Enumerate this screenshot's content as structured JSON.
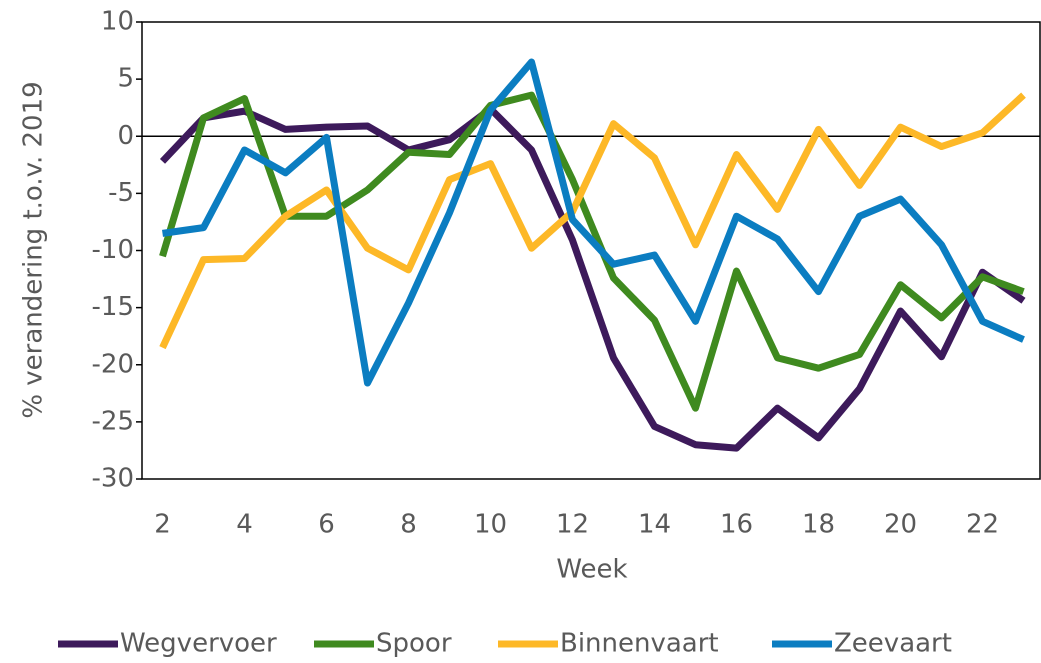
{
  "chart_data": {
    "type": "line",
    "x_label": "Week",
    "y_label": "% verandering t.o.v. 2019",
    "x": [
      2,
      3,
      4,
      5,
      6,
      7,
      8,
      9,
      10,
      11,
      12,
      13,
      14,
      15,
      16,
      17,
      18,
      19,
      20,
      21,
      22,
      23
    ],
    "xlim": [
      1.5,
      23.5
    ],
    "xticks": [
      2,
      4,
      6,
      8,
      10,
      12,
      14,
      16,
      18,
      20,
      22
    ],
    "ylim": [
      -30,
      10
    ],
    "yticks": [
      -30,
      -25,
      -20,
      -15,
      -10,
      -5,
      0,
      5,
      10
    ],
    "legend": "bottom",
    "series": [
      {
        "name": "Wegvervoer",
        "color": "#3d1a5b",
        "values": [
          -2.2,
          1.6,
          2.2,
          0.6,
          0.8,
          0.9,
          -1.2,
          -0.3,
          2.4,
          -1.2,
          -9.1,
          -19.4,
          -25.4,
          -27.0,
          -27.3,
          -23.8,
          -26.4,
          -22.1,
          -15.3,
          -19.3,
          -11.9,
          -14.4
        ]
      },
      {
        "name": "Spoor",
        "color": "#3f8a1f",
        "values": [
          -10.5,
          1.6,
          3.3,
          -7.0,
          -7.0,
          -4.7,
          -1.4,
          -1.6,
          2.7,
          3.6,
          -3.8,
          -12.4,
          -16.1,
          -23.8,
          -11.8,
          -19.4,
          -20.3,
          -19.1,
          -13.0,
          -15.9,
          -12.3,
          -13.6
        ]
      },
      {
        "name": "Binnenvaart",
        "color": "#fdb827",
        "values": [
          -18.5,
          -10.8,
          -10.7,
          -7.0,
          -4.7,
          -9.8,
          -11.7,
          -3.8,
          -2.4,
          -9.8,
          -6.6,
          1.1,
          -1.9,
          -9.5,
          -1.6,
          -6.4,
          0.6,
          -4.3,
          0.8,
          -0.9,
          0.3,
          3.6
        ]
      },
      {
        "name": "Zeevaart",
        "color": "#0b7dc1",
        "values": [
          -8.5,
          -8.0,
          -1.2,
          -3.2,
          -0.1,
          -21.6,
          -14.6,
          -6.7,
          2.3,
          6.5,
          -7.3,
          -11.2,
          -10.4,
          -16.2,
          -7.0,
          -9.0,
          -13.6,
          -7.0,
          -5.5,
          -9.5,
          -16.2,
          -17.8
        ]
      }
    ]
  }
}
